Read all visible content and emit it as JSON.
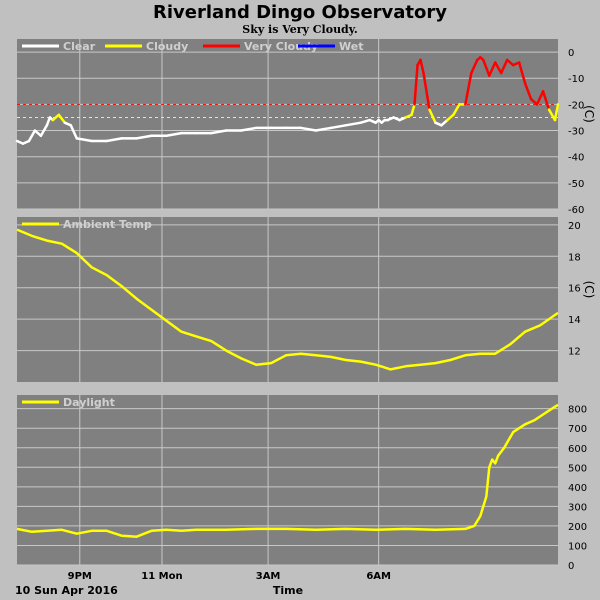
{
  "title": "Riverland Dingo Observatory",
  "subtitle": "Sky is Very Cloudy.",
  "date_label": "10 Sun Apr 2016",
  "x_axis_label": "Time",
  "x_ticks": [
    "9PM",
    "11 Mon",
    "3AM",
    "6AM"
  ],
  "colors": {
    "plot_bg": "#808080",
    "page_bg": "#c0c0c0",
    "clear": "#ffffff",
    "cloudy": "#ffff00",
    "very_cloudy": "#ff0000",
    "wet": "#0000ff",
    "grid": "#c8c8c8"
  },
  "chart_data": [
    {
      "type": "line",
      "legend": [
        "Clear",
        "Cloudy",
        "Very Cloudy",
        "Wet"
      ],
      "unit": "(C)",
      "y_ticks": [
        "0",
        "-10",
        "-20",
        "-30",
        "-40",
        "-50",
        "-60"
      ],
      "ylim": [
        -60,
        5
      ],
      "thresholds": {
        "cloudy": -25,
        "very_cloudy": -20
      },
      "x_hours": [
        0,
        0.2,
        0.4,
        0.6,
        0.8,
        1.0,
        1.1,
        1.2,
        1.4,
        1.6,
        1.8,
        2.0,
        2.5,
        3.0,
        3.5,
        4.0,
        4.5,
        5.0,
        5.5,
        6.0,
        6.5,
        7.0,
        7.5,
        8.0,
        8.5,
        9.0,
        9.5,
        10.0,
        10.5,
        11.0,
        11.5,
        11.8,
        12.0,
        12.1,
        12.2,
        12.3,
        12.4,
        12.6,
        12.8,
        13.0,
        13.2,
        13.3,
        13.4,
        13.5,
        13.6,
        13.8,
        14.0,
        14.2,
        14.4,
        14.6,
        14.8,
        15.0,
        15.2,
        15.4,
        15.5,
        15.6,
        15.8,
        16.0,
        16.2,
        16.4,
        16.6,
        16.8,
        17.0,
        17.2,
        17.4,
        17.6,
        17.8,
        18.0,
        18.1
      ],
      "values": [
        -34,
        -35,
        -34,
        -30,
        -32,
        -28,
        -25,
        -26,
        -24,
        -27,
        -28,
        -33,
        -34,
        -34,
        -33,
        -33,
        -32,
        -32,
        -31,
        -31,
        -31,
        -30,
        -30,
        -29,
        -29,
        -29,
        -29,
        -30,
        -29,
        -28,
        -27,
        -26,
        -27,
        -26,
        -27,
        -26,
        -26,
        -25,
        -26,
        -25,
        -24,
        -20,
        -5,
        -3,
        -8,
        -22,
        -27,
        -28,
        -26,
        -24,
        -20,
        -20,
        -8,
        -3,
        -2,
        -3,
        -9,
        -4,
        -8,
        -3,
        -5,
        -4,
        -12,
        -18,
        -20,
        -15,
        -22,
        -26,
        -20
      ]
    },
    {
      "type": "line",
      "legend": [
        "Ambient Temp"
      ],
      "unit": "(C)",
      "y_ticks": [
        "20",
        "18",
        "16",
        "14",
        "12"
      ],
      "ylim": [
        10,
        20.5
      ],
      "x_hours": [
        0,
        0.5,
        1,
        1.5,
        2,
        2.5,
        3,
        3.5,
        4,
        4.5,
        5,
        5.5,
        6,
        6.5,
        7,
        7.5,
        8,
        8.5,
        9,
        9.5,
        10,
        10.5,
        11,
        11.5,
        12,
        12.5,
        13,
        13.5,
        14,
        14.5,
        15,
        15.5,
        16,
        16.5,
        17,
        17.5,
        18.1
      ],
      "values": [
        19.7,
        19.3,
        19.0,
        18.8,
        18.2,
        17.3,
        16.8,
        16.1,
        15.3,
        14.6,
        13.9,
        13.2,
        12.9,
        12.6,
        12.0,
        11.5,
        11.1,
        11.2,
        11.7,
        11.8,
        11.7,
        11.6,
        11.4,
        11.3,
        11.1,
        10.8,
        11.0,
        11.1,
        11.2,
        11.4,
        11.7,
        11.8,
        11.8,
        12.4,
        13.2,
        13.6,
        14.4
      ]
    },
    {
      "type": "line",
      "legend": [
        "Daylight"
      ],
      "unit": "",
      "y_ticks": [
        "800",
        "700",
        "600",
        "500",
        "400",
        "300",
        "200",
        "100",
        "0"
      ],
      "ylim": [
        0,
        870
      ],
      "x_hours": [
        0,
        0.5,
        1,
        1.5,
        2,
        2.5,
        3,
        3.5,
        4,
        4.5,
        5,
        5.5,
        6,
        7,
        8,
        9,
        10,
        11,
        12,
        13,
        14,
        15,
        15.3,
        15.5,
        15.7,
        15.8,
        15.9,
        16.0,
        16.1,
        16.3,
        16.6,
        17.0,
        17.3,
        17.6,
        17.8,
        18.1
      ],
      "values": [
        185,
        170,
        175,
        180,
        160,
        175,
        175,
        150,
        145,
        175,
        180,
        175,
        180,
        180,
        185,
        185,
        180,
        185,
        180,
        185,
        180,
        185,
        200,
        250,
        350,
        500,
        540,
        520,
        560,
        600,
        680,
        720,
        740,
        770,
        790,
        820
      ]
    }
  ]
}
